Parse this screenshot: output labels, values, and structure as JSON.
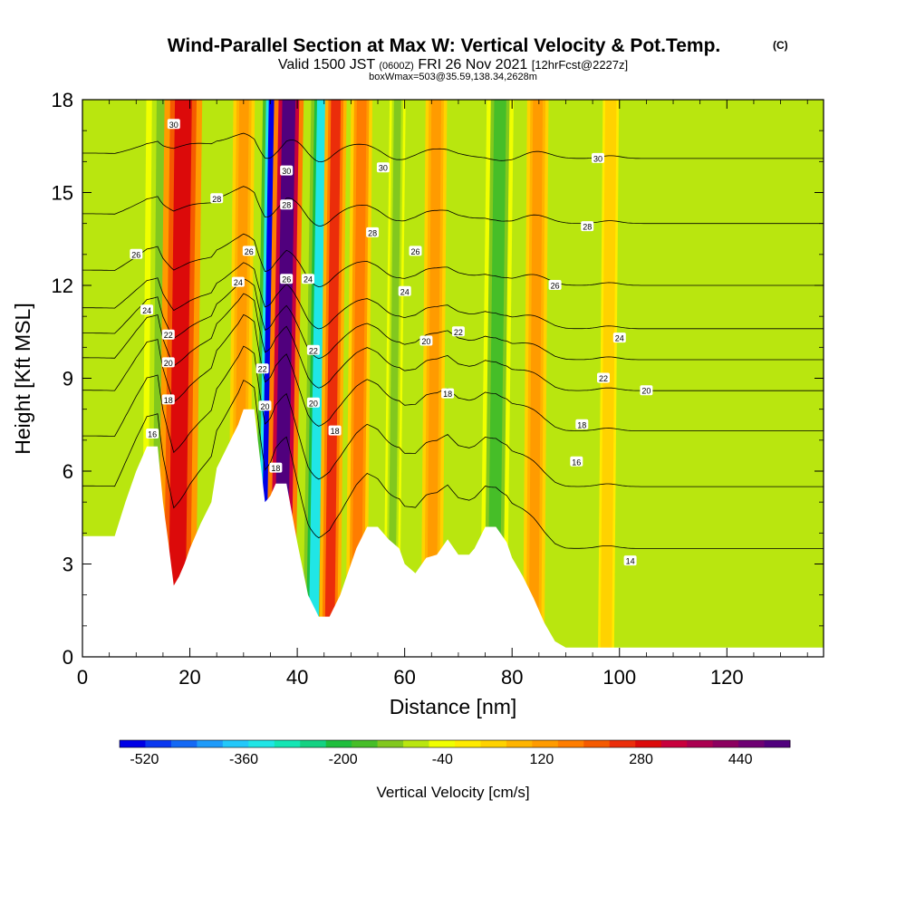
{
  "chart_data": {
    "type": "heatmap",
    "title": "Wind-Parallel Section at Max W: Vertical Velocity & Pot.Temp.",
    "title_mark": "(C)",
    "subtitle": {
      "valid": "Valid 1500 JST",
      "utc": "(0600Z)",
      "date": "FRI 26 Nov 2021",
      "forecast": "[12hrFcst@2227z]"
    },
    "box_info": "boxWmax=503@35.59,138.34,2628m",
    "xlabel": "Distance [nm]",
    "ylabel": "Height [Kft MSL]",
    "xlim": [
      0,
      138
    ],
    "ylim": [
      0,
      18
    ],
    "x_ticks": [
      0,
      20,
      40,
      60,
      80,
      100,
      120
    ],
    "y_ticks": [
      0,
      3,
      6,
      9,
      12,
      15,
      18
    ],
    "grid": false,
    "legend_position": "bottom",
    "colorbar": {
      "label": "Vertical Velocity [cm/s]",
      "ticks": [
        -520,
        -360,
        -200,
        -40,
        120,
        280,
        440
      ],
      "min": -560,
      "max": 520,
      "colors": [
        "#0000e6",
        "#0a37f0",
        "#1469f5",
        "#1e9bfa",
        "#23c8fa",
        "#20e6e6",
        "#14e6b4",
        "#14d282",
        "#1ebe3c",
        "#46be28",
        "#82c81e",
        "#b9e60f",
        "#f0ff00",
        "#ffeb00",
        "#ffd200",
        "#ffb400",
        "#ff9b00",
        "#ff7d00",
        "#f55a00",
        "#eb2d0a",
        "#dc0a0a",
        "#c8003c",
        "#aa0050",
        "#8c005f",
        "#6e0073",
        "#50007d"
      ]
    },
    "terrain_kft": [
      [
        0,
        3.9
      ],
      [
        6,
        3.9
      ],
      [
        8,
        5
      ],
      [
        10,
        6
      ],
      [
        12,
        6.8
      ],
      [
        14,
        6.8
      ],
      [
        15,
        5
      ],
      [
        16,
        3.7
      ],
      [
        17,
        2.3
      ],
      [
        18,
        2.6
      ],
      [
        19,
        3
      ],
      [
        20,
        3.5
      ],
      [
        22,
        4.3
      ],
      [
        24,
        5
      ],
      [
        25,
        6.1
      ],
      [
        27,
        6.8
      ],
      [
        29,
        7.5
      ],
      [
        30,
        8
      ],
      [
        32,
        8
      ],
      [
        33,
        6.5
      ],
      [
        34,
        5
      ],
      [
        35,
        5.2
      ],
      [
        36,
        5.6
      ],
      [
        38,
        5.6
      ],
      [
        40,
        3.7
      ],
      [
        42,
        2
      ],
      [
        44,
        1.3
      ],
      [
        46,
        1.3
      ],
      [
        48,
        2
      ],
      [
        49,
        2.5
      ],
      [
        50,
        3
      ],
      [
        51,
        3.5
      ],
      [
        53,
        4.2
      ],
      [
        55,
        4.2
      ],
      [
        57,
        3.8
      ],
      [
        59,
        3.5
      ],
      [
        60,
        3
      ],
      [
        62,
        2.7
      ],
      [
        64,
        3.2
      ],
      [
        66,
        3.3
      ],
      [
        68,
        3.8
      ],
      [
        70,
        3.3
      ],
      [
        72,
        3.3
      ],
      [
        73,
        3.5
      ],
      [
        75,
        4.2
      ],
      [
        77,
        4.2
      ],
      [
        79,
        3.7
      ],
      [
        80,
        3.2
      ],
      [
        82,
        2.6
      ],
      [
        84,
        1.9
      ],
      [
        86,
        1.1
      ],
      [
        88,
        0.5
      ],
      [
        90,
        0.3
      ],
      [
        138,
        0.3
      ]
    ],
    "velocity_plumes": [
      {
        "x0": 11,
        "x1": 18,
        "w": -120,
        "h": 0.9
      },
      {
        "x0": 14,
        "x1": 21,
        "w": 300,
        "h": 1.3
      },
      {
        "x0": 27,
        "x1": 31,
        "w": 130,
        "h": 1.1
      },
      {
        "x0": 32,
        "x1": 36,
        "w": -520,
        "h": 1.6
      },
      {
        "x0": 34,
        "x1": 39.5,
        "w": 480,
        "h": 1.7
      },
      {
        "x0": 41,
        "x1": 45,
        "w": -330,
        "h": 1.6
      },
      {
        "x0": 44,
        "x1": 48,
        "w": 230,
        "h": 1.2
      },
      {
        "x0": 49,
        "x1": 53,
        "w": 160,
        "h": 1.0
      },
      {
        "x0": 56,
        "x1": 59,
        "w": -130,
        "h": 1.2
      },
      {
        "x0": 63,
        "x1": 67,
        "w": 120,
        "h": 0.9
      },
      {
        "x0": 74,
        "x1": 79,
        "w": -170,
        "h": 1.3
      },
      {
        "x0": 82,
        "x1": 86,
        "w": 140,
        "h": 0.8
      },
      {
        "x0": 96,
        "x1": 99,
        "w": 60,
        "h": 0.9
      }
    ],
    "theta_contours": [
      {
        "level": 14,
        "label": "14",
        "y_far": 3.5
      },
      {
        "level": 16,
        "label": "16",
        "y_far": 5.5
      },
      {
        "level": 18,
        "label": "18",
        "y_far": 7.3
      },
      {
        "level": 20,
        "label": "20",
        "y_far": 8.6
      },
      {
        "level": 22,
        "label": "22",
        "y_far": 9.6
      },
      {
        "level": 24,
        "label": "24",
        "y_far": 10.6
      },
      {
        "level": 26,
        "label": "26",
        "y_far": 12.0
      },
      {
        "level": 28,
        "label": "28",
        "y_far": 14.0
      },
      {
        "level": 30,
        "label": "30",
        "y_far": 16.1
      }
    ],
    "annotations": [
      {
        "text": "30",
        "x": 17,
        "y": 17.2
      },
      {
        "text": "28",
        "x": 25,
        "y": 14.8
      },
      {
        "text": "26",
        "x": 10,
        "y": 13.0
      },
      {
        "text": "24",
        "x": 12,
        "y": 11.2
      },
      {
        "text": "22",
        "x": 16,
        "y": 10.4
      },
      {
        "text": "20",
        "x": 16,
        "y": 9.5
      },
      {
        "text": "18",
        "x": 16,
        "y": 8.3
      },
      {
        "text": "16",
        "x": 13,
        "y": 7.2
      },
      {
        "text": "24",
        "x": 29,
        "y": 12.1
      },
      {
        "text": "26",
        "x": 31,
        "y": 13.1
      },
      {
        "text": "22",
        "x": 33.5,
        "y": 9.3
      },
      {
        "text": "20",
        "x": 34,
        "y": 8.1
      },
      {
        "text": "30",
        "x": 38,
        "y": 15.7
      },
      {
        "text": "28",
        "x": 38,
        "y": 14.6
      },
      {
        "text": "26",
        "x": 38,
        "y": 12.2
      },
      {
        "text": "24",
        "x": 42,
        "y": 12.2
      },
      {
        "text": "22",
        "x": 43,
        "y": 9.9
      },
      {
        "text": "20",
        "x": 43,
        "y": 8.2
      },
      {
        "text": "18",
        "x": 36,
        "y": 6.1
      },
      {
        "text": "18",
        "x": 47,
        "y": 7.3
      },
      {
        "text": "30",
        "x": 56,
        "y": 15.8
      },
      {
        "text": "28",
        "x": 54,
        "y": 13.7
      },
      {
        "text": "26",
        "x": 62,
        "y": 13.1
      },
      {
        "text": "24",
        "x": 60,
        "y": 11.8
      },
      {
        "text": "20",
        "x": 64,
        "y": 10.2
      },
      {
        "text": "22",
        "x": 70,
        "y": 10.5
      },
      {
        "text": "18",
        "x": 68,
        "y": 8.5
      },
      {
        "text": "30",
        "x": 96,
        "y": 16.1
      },
      {
        "text": "28",
        "x": 94,
        "y": 13.9
      },
      {
        "text": "26",
        "x": 88,
        "y": 12.0
      },
      {
        "text": "24",
        "x": 100,
        "y": 10.3
      },
      {
        "text": "22",
        "x": 97,
        "y": 9.0
      },
      {
        "text": "20",
        "x": 105,
        "y": 8.6
      },
      {
        "text": "18",
        "x": 93,
        "y": 7.5
      },
      {
        "text": "16",
        "x": 92,
        "y": 6.3
      },
      {
        "text": "14",
        "x": 102,
        "y": 3.1
      }
    ]
  }
}
